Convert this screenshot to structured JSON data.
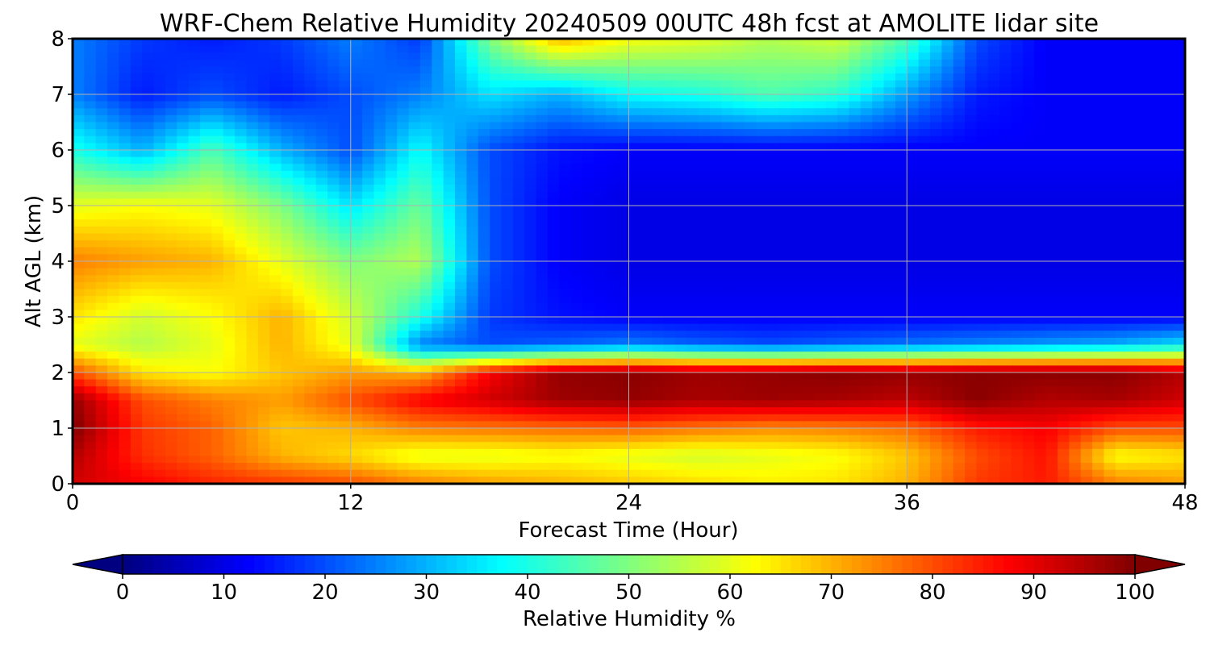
{
  "chart_data": {
    "type": "heatmap",
    "title": "WRF-Chem Relative Humidity 20240509 00UTC 48h fcst at AMOLITE lidar site",
    "xlabel": "Forecast Time (Hour)",
    "ylabel": "Alt AGL (km)",
    "xlim": [
      0,
      48
    ],
    "ylim": [
      0,
      8
    ],
    "xticks": [
      "0",
      "12",
      "24",
      "36",
      "48"
    ],
    "yticks": [
      "0",
      "1",
      "2",
      "3",
      "4",
      "5",
      "6",
      "7",
      "8"
    ],
    "grid": true,
    "colormap": "jet",
    "colorbar": {
      "label": "Relative Humidity %",
      "range": [
        0,
        100
      ],
      "ticks": [
        "0",
        "10",
        "20",
        "30",
        "40",
        "50",
        "60",
        "70",
        "80",
        "90",
        "100"
      ],
      "extend": "both"
    },
    "x": [
      0,
      3,
      6,
      9,
      12,
      15,
      18,
      21,
      24,
      27,
      30,
      33,
      36,
      39,
      42,
      45,
      48
    ],
    "y": [
      0,
      0.5,
      1,
      1.5,
      2,
      2.5,
      3,
      4,
      5,
      6,
      7,
      8
    ],
    "z": [
      [
        92,
        88,
        84,
        82,
        80,
        75,
        72,
        70,
        68,
        66,
        64,
        65,
        70,
        82,
        85,
        75,
        72
      ],
      [
        95,
        83,
        78,
        70,
        66,
        60,
        60,
        62,
        60,
        58,
        60,
        62,
        68,
        80,
        86,
        62,
        65
      ],
      [
        100,
        82,
        78,
        68,
        70,
        75,
        76,
        77,
        78,
        76,
        74,
        75,
        77,
        85,
        88,
        80,
        80
      ],
      [
        98,
        80,
        75,
        72,
        80,
        88,
        92,
        97,
        98,
        96,
        97,
        96,
        94,
        99,
        95,
        96,
        92
      ],
      [
        80,
        65,
        62,
        68,
        72,
        70,
        88,
        98,
        99,
        97,
        98,
        99,
        98,
        99,
        99,
        99,
        95
      ],
      [
        60,
        55,
        60,
        70,
        60,
        25,
        20,
        22,
        25,
        22,
        20,
        22,
        24,
        26,
        28,
        30,
        35
      ],
      [
        65,
        58,
        62,
        70,
        58,
        40,
        18,
        14,
        12,
        12,
        12,
        12,
        12,
        12,
        12,
        12,
        12
      ],
      [
        75,
        72,
        70,
        60,
        50,
        55,
        20,
        12,
        10,
        10,
        10,
        10,
        10,
        10,
        10,
        10,
        10
      ],
      [
        60,
        62,
        60,
        50,
        35,
        48,
        20,
        12,
        10,
        10,
        10,
        10,
        10,
        10,
        10,
        10,
        10
      ],
      [
        40,
        30,
        45,
        30,
        20,
        38,
        20,
        14,
        12,
        12,
        12,
        12,
        12,
        12,
        12,
        12,
        12
      ],
      [
        25,
        15,
        20,
        15,
        20,
        25,
        35,
        30,
        38,
        40,
        45,
        42,
        28,
        15,
        12,
        12,
        12
      ],
      [
        25,
        18,
        15,
        18,
        25,
        18,
        50,
        70,
        62,
        60,
        55,
        58,
        45,
        20,
        12,
        12,
        12
      ]
    ]
  }
}
